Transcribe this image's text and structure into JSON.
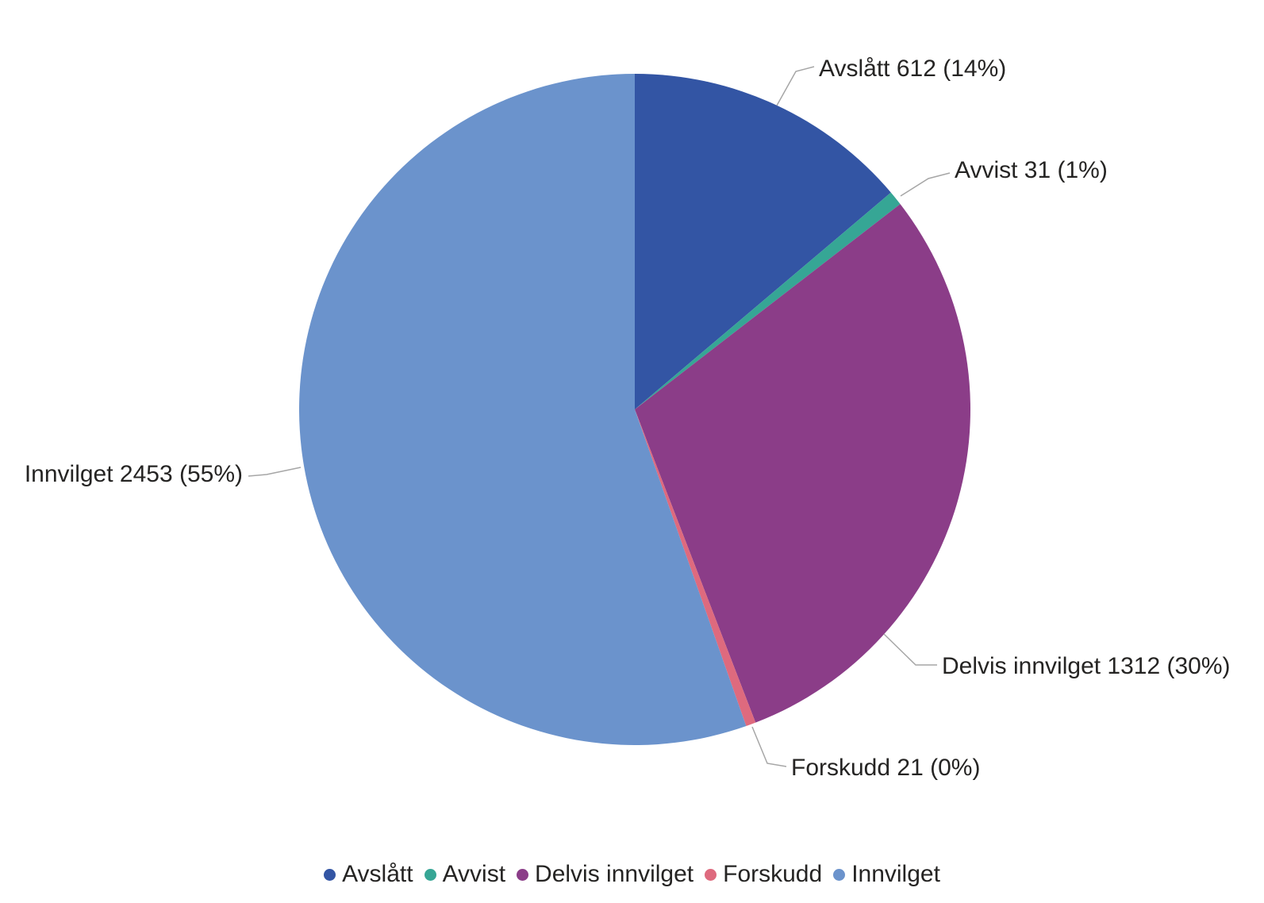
{
  "chart_data": {
    "type": "pie",
    "categories": [
      "Avslått",
      "Avvist",
      "Delvis innvilget",
      "Forskudd",
      "Innvilget"
    ],
    "values": [
      612,
      31,
      1312,
      21,
      2453
    ],
    "percents": [
      14,
      1,
      30,
      0,
      55
    ],
    "colors": [
      "#3355A4",
      "#36A695",
      "#8B3D88",
      "#DE6A7E",
      "#6B93CC"
    ],
    "slice_labels": [
      "Avslått 612 (14%)",
      "Avvist 31 (1%)",
      "Delvis innvilget 1312 (30%)",
      "Forskudd 21 (0%)",
      "Innvilget 2453 (55%)"
    ],
    "legend": {
      "position": "bottom",
      "items": [
        "Avslått",
        "Avvist",
        "Delvis innvilget",
        "Forskudd",
        "Innvilget"
      ]
    },
    "start_angle_deg": 0,
    "clockwise": true,
    "label_color": "#252423",
    "leader_line_color": "#A6A6A6",
    "background": "#FFFFFF"
  }
}
